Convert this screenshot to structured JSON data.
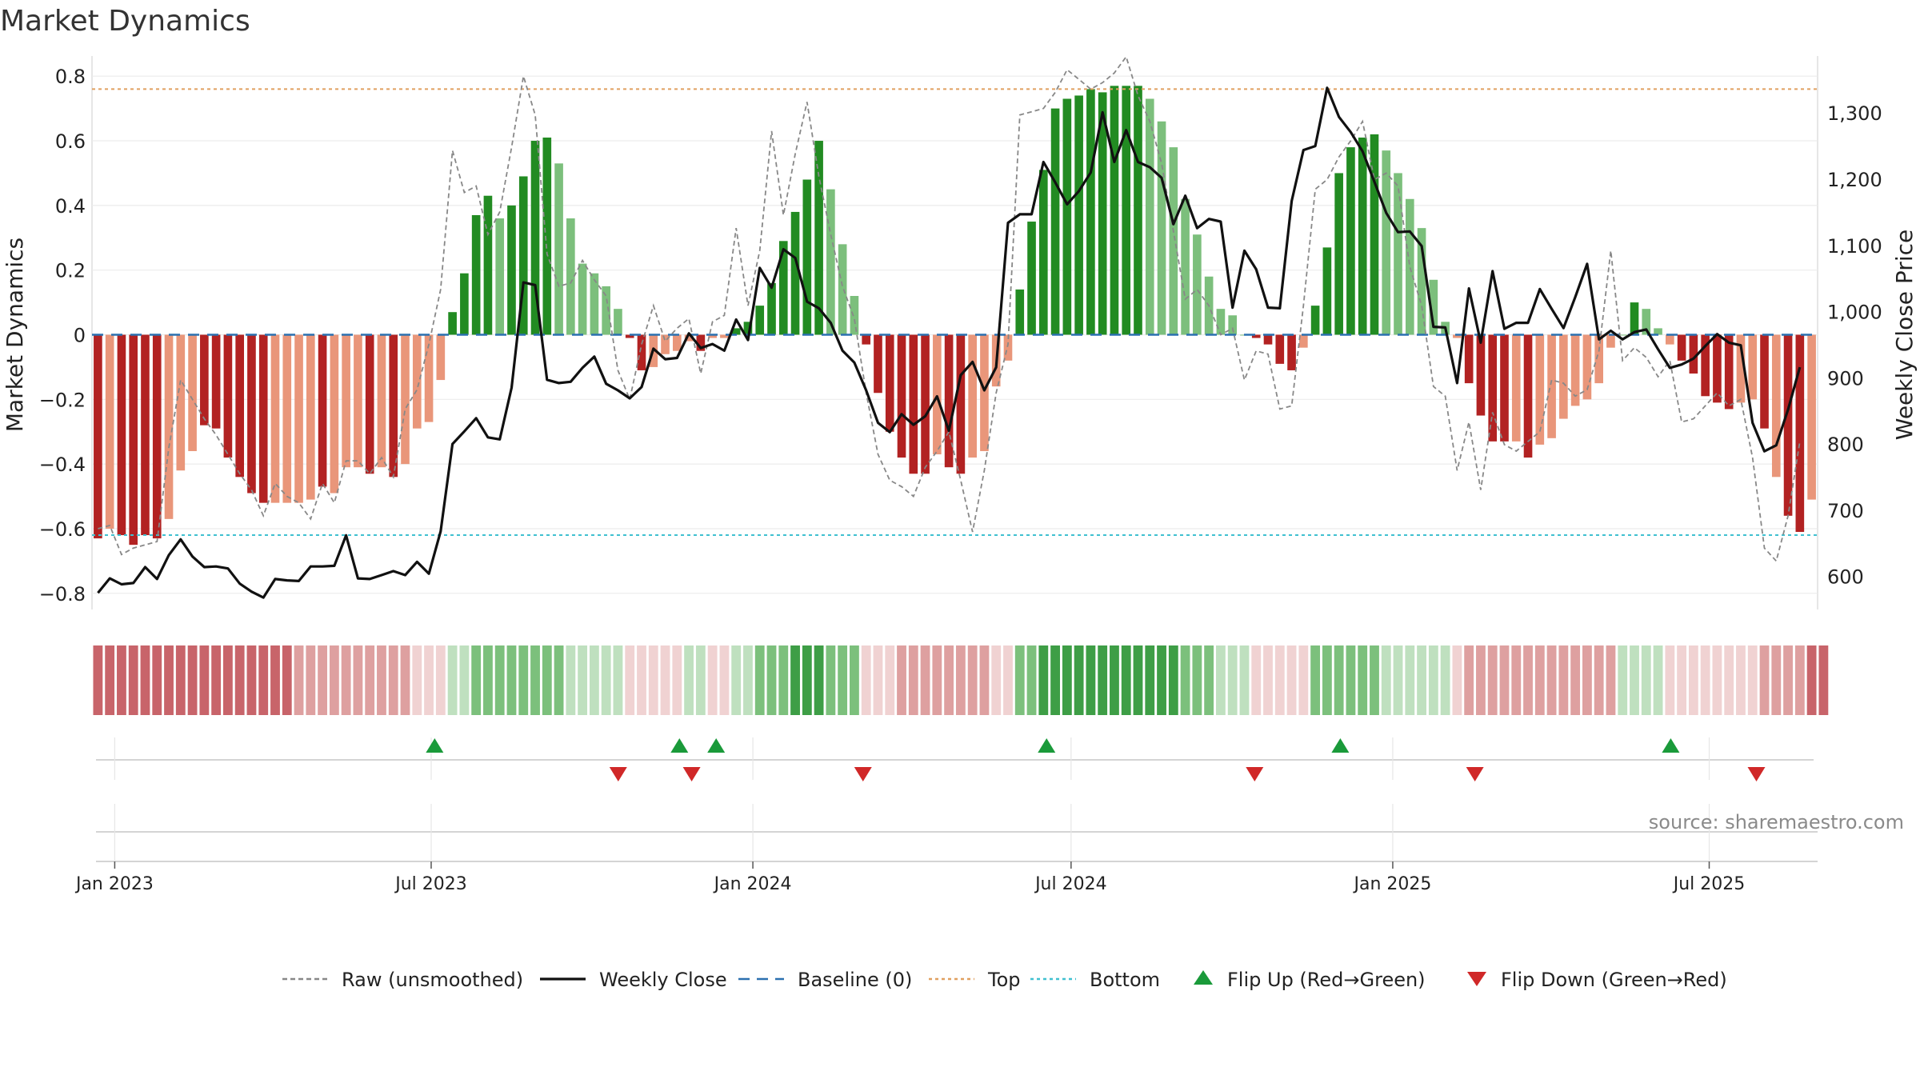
{
  "title": "Market Dynamics",
  "source_label": "source: sharemaestro.com",
  "colors": {
    "strong_up": "#228b22",
    "weak_up": "#7cbf7c",
    "strong_down": "#b22222",
    "weak_down": "#e9967a",
    "top_line": "#e0a060",
    "bottom_line": "#40c0d0",
    "baseline": "#2b70b0",
    "raw_line": "#888888",
    "close_line": "#111111",
    "flip_up": "#1a9a3a",
    "flip_down": "#d02828"
  },
  "legend": [
    {
      "label": "Raw (unsmoothed)",
      "icon": "dashed-line-icon",
      "color": "#888888"
    },
    {
      "label": "Weekly Close",
      "icon": "solid-line-icon",
      "color": "#111111"
    },
    {
      "label": "Baseline (0)",
      "icon": "long-dash-line-icon",
      "color": "#2b70b0"
    },
    {
      "label": "Top",
      "icon": "dotted-line-icon",
      "color": "#e0a060"
    },
    {
      "label": "Bottom",
      "icon": "dotted-line-icon",
      "color": "#40c0d0"
    },
    {
      "label": "Flip Up (Red→Green)",
      "icon": "triangle-up-icon",
      "color": "#1a9a3a"
    },
    {
      "label": "Flip Down (Green→Red)",
      "icon": "triangle-down-icon",
      "color": "#d02828"
    }
  ],
  "chart_data": {
    "type": "bar",
    "ylabel_left": "Market Dynamics",
    "ylabel_right": "Weekly Close Price",
    "ylim_left": [
      -0.85,
      0.85
    ],
    "yticks_left": [
      -0.8,
      -0.6,
      -0.4,
      -0.2,
      0,
      0.2,
      0.4,
      0.6,
      0.8
    ],
    "ylim_right": [
      550,
      1380
    ],
    "yticks_right": [
      600,
      700,
      800,
      900,
      1000,
      1100,
      1200,
      1300
    ],
    "x_start": "2022-12-19",
    "x_end": "2025-09-01",
    "xticks": [
      {
        "label": "Jan 2023",
        "date": "2023-01-01"
      },
      {
        "label": "Jul 2023",
        "date": "2023-07-01"
      },
      {
        "label": "Jan 2024",
        "date": "2024-01-01"
      },
      {
        "label": "Jul 2024",
        "date": "2024-07-01"
      },
      {
        "label": "Jan 2025",
        "date": "2025-01-01"
      },
      {
        "label": "Jul 2025",
        "date": "2025-07-01"
      }
    ],
    "top_level": 0.76,
    "bottom_level": -0.62,
    "grid": true,
    "legend_position": "bottom",
    "bar_values": [
      -0.63,
      -0.6,
      -0.62,
      -0.65,
      -0.62,
      -0.63,
      -0.57,
      -0.42,
      -0.36,
      -0.28,
      -0.29,
      -0.38,
      -0.44,
      -0.49,
      -0.52,
      -0.52,
      -0.52,
      -0.52,
      -0.51,
      -0.47,
      -0.49,
      -0.41,
      -0.41,
      -0.43,
      -0.41,
      -0.44,
      -0.4,
      -0.29,
      -0.27,
      -0.14,
      0.07,
      0.19,
      0.37,
      0.43,
      0.36,
      0.4,
      0.49,
      0.6,
      0.61,
      0.53,
      0.36,
      0.22,
      0.19,
      0.15,
      0.08,
      -0.01,
      -0.11,
      -0.1,
      -0.06,
      -0.05,
      -0.02,
      -0.05,
      -0.01,
      -0.01,
      0.02,
      0.04,
      0.09,
      0.16,
      0.29,
      0.38,
      0.48,
      0.6,
      0.45,
      0.28,
      0.12,
      -0.03,
      -0.18,
      -0.3,
      -0.38,
      -0.43,
      -0.43,
      -0.37,
      -0.41,
      -0.43,
      -0.38,
      -0.36,
      -0.16,
      -0.08,
      0.14,
      0.35,
      0.51,
      0.7,
      0.73,
      0.74,
      0.76,
      0.75,
      0.77,
      0.77,
      0.77,
      0.73,
      0.66,
      0.58,
      0.42,
      0.31,
      0.18,
      0.08,
      0.06,
      0.0,
      -0.01,
      -0.03,
      -0.09,
      -0.11,
      -0.04,
      0.09,
      0.27,
      0.5,
      0.58,
      0.61,
      0.62,
      0.57,
      0.5,
      0.42,
      0.33,
      0.17,
      0.04,
      -0.01,
      -0.15,
      -0.25,
      -0.33,
      -0.33,
      -0.33,
      -0.38,
      -0.34,
      -0.32,
      -0.26,
      -0.22,
      -0.2,
      -0.15,
      -0.04,
      0.0,
      0.1,
      0.08,
      0.02,
      -0.03,
      -0.08,
      -0.12,
      -0.19,
      -0.21,
      -0.23,
      -0.21,
      -0.2,
      -0.29,
      -0.44,
      -0.56,
      -0.61,
      -0.51
    ],
    "bar_color_class": [
      "SD",
      "WD",
      "SD",
      "SD",
      "SD",
      "SD",
      "WD",
      "WD",
      "WD",
      "SD",
      "SD",
      "SD",
      "SD",
      "SD",
      "SD",
      "WD",
      "WD",
      "WD",
      "WD",
      "SD",
      "WD",
      "WD",
      "WD",
      "SD",
      "WD",
      "SD",
      "WD",
      "WD",
      "WD",
      "WD",
      "SU",
      "SU",
      "SU",
      "SU",
      "WU",
      "SU",
      "SU",
      "SU",
      "SU",
      "WU",
      "WU",
      "WU",
      "WU",
      "WU",
      "WU",
      "SD",
      "SD",
      "WD",
      "WD",
      "WD",
      "WD",
      "SD",
      "WD",
      "WD",
      "SU",
      "SU",
      "SU",
      "SU",
      "SU",
      "SU",
      "SU",
      "SU",
      "WU",
      "WU",
      "WU",
      "SD",
      "SD",
      "SD",
      "SD",
      "SD",
      "SD",
      "WD",
      "SD",
      "SD",
      "WD",
      "WD",
      "WD",
      "WD",
      "SU",
      "SU",
      "SU",
      "SU",
      "SU",
      "SU",
      "SU",
      "SU",
      "SU",
      "SU",
      "SU",
      "WU",
      "WU",
      "WU",
      "WU",
      "WU",
      "WU",
      "WU",
      "WU",
      "WU",
      "SD",
      "SD",
      "SD",
      "SD",
      "WD",
      "SU",
      "SU",
      "SU",
      "SU",
      "SU",
      "SU",
      "WU",
      "WU",
      "WU",
      "WU",
      "WU",
      "WU",
      "WD",
      "SD",
      "SD",
      "SD",
      "SD",
      "WD",
      "SD",
      "WD",
      "WD",
      "WD",
      "WD",
      "WD",
      "WD",
      "WD",
      "WU",
      "SU",
      "WU",
      "WU",
      "WD",
      "SD",
      "SD",
      "SD",
      "SD",
      "SD",
      "WD",
      "WD",
      "SD",
      "WD",
      "SD",
      "SD",
      "WD"
    ],
    "raw_values": [
      -0.6,
      -0.59,
      -0.68,
      -0.66,
      -0.65,
      -0.64,
      -0.35,
      -0.14,
      -0.2,
      -0.26,
      -0.31,
      -0.37,
      -0.43,
      -0.48,
      -0.56,
      -0.46,
      -0.5,
      -0.52,
      -0.57,
      -0.46,
      -0.52,
      -0.39,
      -0.39,
      -0.43,
      -0.38,
      -0.44,
      -0.23,
      -0.17,
      -0.03,
      0.14,
      0.57,
      0.44,
      0.46,
      0.31,
      0.38,
      0.58,
      0.8,
      0.68,
      0.25,
      0.15,
      0.16,
      0.23,
      0.17,
      0.12,
      -0.11,
      -0.2,
      -0.03,
      0.09,
      -0.02,
      0.02,
      0.05,
      -0.12,
      0.04,
      0.06,
      0.33,
      0.09,
      0.26,
      0.63,
      0.37,
      0.56,
      0.72,
      0.49,
      0.31,
      0.15,
      0.05,
      -0.18,
      -0.37,
      -0.45,
      -0.47,
      -0.5,
      -0.41,
      -0.36,
      -0.3,
      -0.45,
      -0.61,
      -0.42,
      -0.18,
      -0.03,
      0.68,
      0.69,
      0.7,
      0.75,
      0.82,
      0.79,
      0.76,
      0.78,
      0.81,
      0.86,
      0.74,
      0.66,
      0.53,
      0.32,
      0.11,
      0.14,
      0.09,
      0.0,
      0.02,
      -0.14,
      -0.05,
      -0.06,
      -0.23,
      -0.22,
      0.09,
      0.45,
      0.48,
      0.55,
      0.6,
      0.66,
      0.48,
      0.5,
      0.46,
      0.21,
      0.09,
      -0.16,
      -0.19,
      -0.42,
      -0.27,
      -0.48,
      -0.24,
      -0.34,
      -0.36,
      -0.33,
      -0.3,
      -0.14,
      -0.15,
      -0.19,
      -0.17,
      -0.05,
      0.26,
      -0.08,
      -0.04,
      -0.07,
      -0.13,
      -0.08,
      -0.27,
      -0.26,
      -0.22,
      -0.18,
      -0.22,
      -0.2,
      -0.38,
      -0.66,
      -0.7,
      -0.56,
      -0.33
    ],
    "close_values": [
      575,
      597,
      588,
      590,
      614,
      596,
      632,
      656,
      630,
      614,
      615,
      612,
      589,
      577,
      568,
      596,
      594,
      593,
      615,
      615,
      616,
      662,
      597,
      596,
      602,
      608,
      602,
      622,
      604,
      668,
      800,
      819,
      839,
      810,
      807,
      885,
      1044,
      1040,
      897,
      892,
      894,
      915,
      932,
      891,
      881,
      869,
      886,
      944,
      928,
      930,
      967,
      945,
      951,
      941,
      988,
      957,
      1066,
      1036,
      1094,
      1081,
      1015,
      1005,
      983,
      941,
      923,
      881,
      832,
      818,
      845,
      829,
      842,
      872,
      820,
      904,
      924,
      881,
      916,
      1134,
      1147,
      1147,
      1226,
      1195,
      1162,
      1182,
      1210,
      1301,
      1226,
      1274,
      1226,
      1218,
      1202,
      1132,
      1175,
      1126,
      1140,
      1136,
      1006,
      1092,
      1064,
      1006,
      1005,
      1167,
      1244,
      1250,
      1338,
      1294,
      1271,
      1242,
      1196,
      1149,
      1120,
      1121,
      1099,
      977,
      976,
      892,
      1035,
      953,
      1061,
      974,
      983,
      983,
      1034,
      1004,
      975,
      1022,
      1072,
      958,
      971,
      958,
      969,
      973,
      943,
      915,
      920,
      929,
      948,
      966,
      953,
      949,
      832,
      789,
      798,
      852,
      916
    ]
  },
  "regime_strip": [
    "SD",
    "SD",
    "SD",
    "SD",
    "SD",
    "SD",
    "SD",
    "SD",
    "SD",
    "SD",
    "SD",
    "SD",
    "SD",
    "SD",
    "SD",
    "SD",
    "SD",
    "MD",
    "MD",
    "MD",
    "MD",
    "MD",
    "MD",
    "MD",
    "MD",
    "MD",
    "MD",
    "LD",
    "LD",
    "LD",
    "LU",
    "LU",
    "MU",
    "MU",
    "MU",
    "MU",
    "MU",
    "MU",
    "MU",
    "MU",
    "LU",
    "LU",
    "LU",
    "LU",
    "LU",
    "LD",
    "LD",
    "LD",
    "LD",
    "LD",
    "LU",
    "LU",
    "LD",
    "LD",
    "LU",
    "LU",
    "MU",
    "MU",
    "MU",
    "SU",
    "SU",
    "SU",
    "MU",
    "MU",
    "MU",
    "LD",
    "LD",
    "LD",
    "MD",
    "MD",
    "MD",
    "MD",
    "MD",
    "MD",
    "MD",
    "MD",
    "LD",
    "LD",
    "MU",
    "MU",
    "SU",
    "SU",
    "SU",
    "SU",
    "SU",
    "SU",
    "SU",
    "SU",
    "SU",
    "SU",
    "SU",
    "SU",
    "MU",
    "MU",
    "MU",
    "LU",
    "LU",
    "LU",
    "LD",
    "LD",
    "LD",
    "LD",
    "LD",
    "MU",
    "MU",
    "MU",
    "MU",
    "MU",
    "MU",
    "LU",
    "LU",
    "LU",
    "LU",
    "LU",
    "LU",
    "LD",
    "MD",
    "MD",
    "MD",
    "MD",
    "MD",
    "MD",
    "MD",
    "MD",
    "MD",
    "MD",
    "MD",
    "MD",
    "MD",
    "LU",
    "LU",
    "LU",
    "LU",
    "LD",
    "LD",
    "LD",
    "LD",
    "LD",
    "LD",
    "LD",
    "LD",
    "MD",
    "MD",
    "MD",
    "MD",
    "SD",
    "SD"
  ],
  "flip_up_dates": [
    "2023-07-03",
    "2023-11-20",
    "2023-12-11",
    "2024-06-17",
    "2024-12-02",
    "2025-06-09"
  ],
  "flip_down_dates": [
    "2023-10-16",
    "2023-11-27",
    "2024-03-04",
    "2024-10-14",
    "2025-02-17",
    "2025-07-28"
  ],
  "strip_colors": {
    "SD": "#c8646a",
    "MD": "#dea0a0",
    "LD": "#f0d2d2",
    "LU": "#bfe0bf",
    "MU": "#7cc07c",
    "SU": "#3e9e46"
  }
}
